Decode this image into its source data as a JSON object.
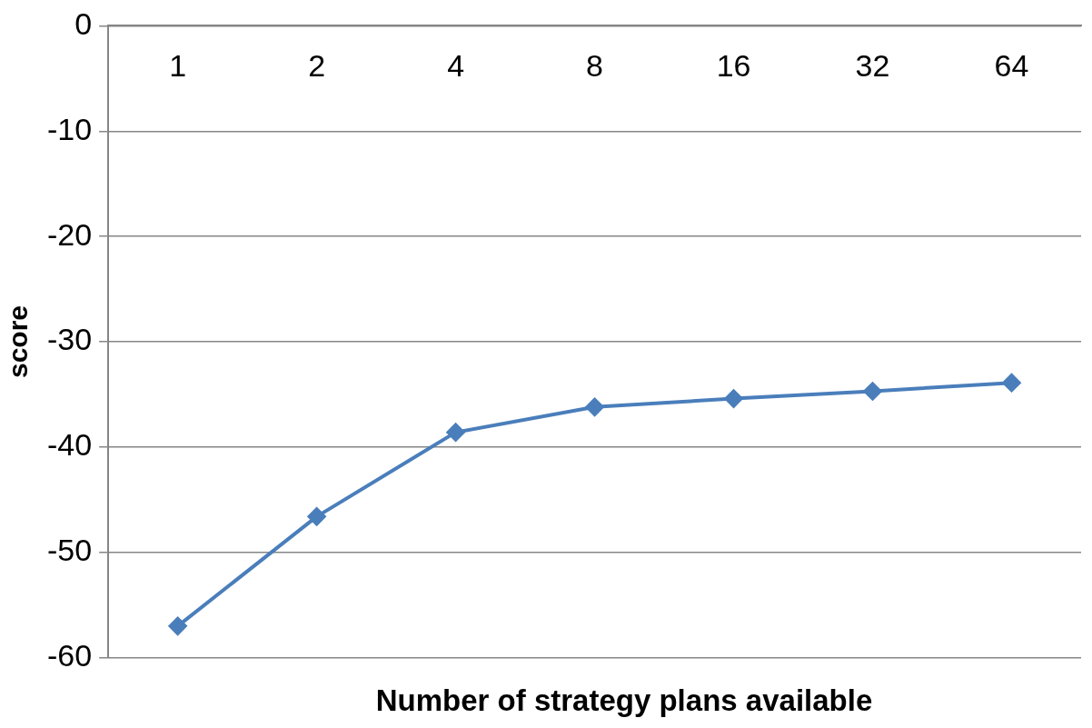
{
  "chart_data": {
    "type": "line",
    "xlabel": "Number of strategy plans available",
    "ylabel": "score",
    "categories": [
      "1",
      "2",
      "4",
      "8",
      "16",
      "32",
      "64"
    ],
    "series": [
      {
        "color": "#4a7ebb",
        "values": [
          -57,
          -46.6,
          -38.6,
          -36.2,
          -35.4,
          -34.7,
          -33.9
        ]
      }
    ],
    "ylim": [
      -60,
      0
    ],
    "yticks": [
      -60,
      -50,
      -40,
      -30,
      -20,
      -10,
      0
    ],
    "grid": "y",
    "marker": "diamond",
    "line_style": "solid"
  }
}
